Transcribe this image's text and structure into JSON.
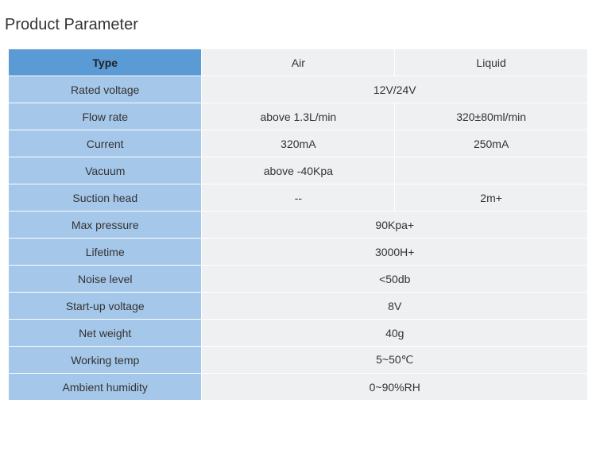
{
  "title": "Product Parameter",
  "table": {
    "header": {
      "param_label": "Type",
      "col1": "Air",
      "col2": "Liquid"
    },
    "rows": [
      {
        "label": "Rated voltage",
        "merged": true,
        "value": "12V/24V"
      },
      {
        "label": "Flow rate",
        "merged": false,
        "col1": "above 1.3L/min",
        "col2": "320±80ml/min"
      },
      {
        "label": "Current",
        "merged": false,
        "col1": "320mA",
        "col2": "250mA"
      },
      {
        "label": "Vacuum",
        "merged": false,
        "col1": "above -40Kpa",
        "col2": ""
      },
      {
        "label": "Suction head",
        "merged": false,
        "col1": "--",
        "col2": "2m+"
      },
      {
        "label": "Max pressure",
        "merged": true,
        "value": "90Kpa+"
      },
      {
        "label": "Lifetime",
        "merged": true,
        "value": "3000H+"
      },
      {
        "label": "Noise level",
        "merged": true,
        "value": "<50db"
      },
      {
        "label": "Start-up voltage",
        "merged": true,
        "value": "8V"
      },
      {
        "label": "Net weight",
        "merged": true,
        "value": "40g"
      },
      {
        "label": "Working temp",
        "merged": true,
        "value": "5~50℃"
      },
      {
        "label": "Ambient humidity",
        "merged": true,
        "value": "0~90%RH"
      }
    ]
  },
  "colors": {
    "header_label_bg": "#5b9bd5",
    "label_bg": "#a5c7e9",
    "value_bg": "#eef0f1",
    "border": "#ffffff",
    "text": "#333333"
  }
}
